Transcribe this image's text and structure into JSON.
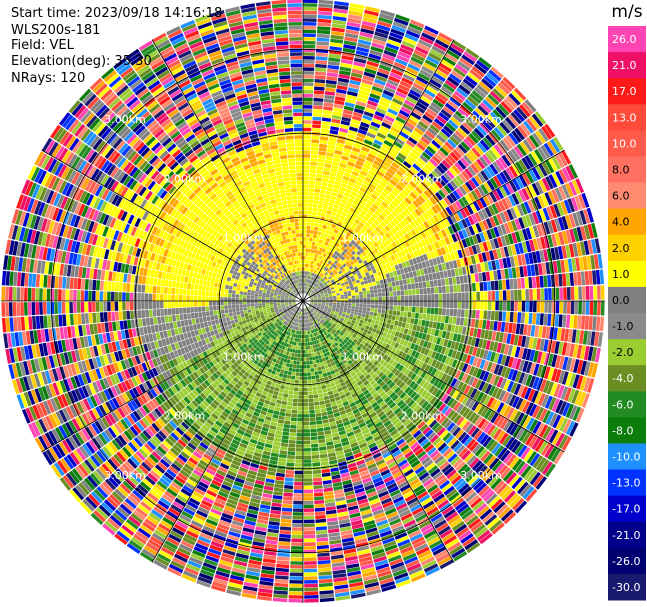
{
  "header": {
    "start_time": "Start time: 2023/09/18 14:16:18",
    "instrument": "WLS200s-181",
    "field": "Field: VEL",
    "elevation": "Elevation(deg): 35.30",
    "nrays": "NRays: 120"
  },
  "colorbar": {
    "unit": "m/s",
    "levels": [
      {
        "label": "26.0",
        "color": "#ff44b4"
      },
      {
        "label": "21.0",
        "color": "#ee1166"
      },
      {
        "label": "17.0",
        "color": "#ff1a1a"
      },
      {
        "label": "13.0",
        "color": "#ff4a3a"
      },
      {
        "label": "10.0",
        "color": "#ff5a4a"
      },
      {
        "label": "8.0",
        "color": "#ff7060"
      },
      {
        "label": "6.0",
        "color": "#ff8a70"
      },
      {
        "label": "4.0",
        "color": "#ffa500"
      },
      {
        "label": "2.0",
        "color": "#ffd000"
      },
      {
        "label": "1.0",
        "color": "#ffff00"
      },
      {
        "label": "0.0",
        "color": "#808080"
      },
      {
        "label": "-1.0",
        "color": "#8a8a8a"
      },
      {
        "label": "-2.0",
        "color": "#9acd32"
      },
      {
        "label": "-4.0",
        "color": "#6b8e23"
      },
      {
        "label": "-6.0",
        "color": "#228b22"
      },
      {
        "label": "-8.0",
        "color": "#0b7d0b"
      },
      {
        "label": "-10.0",
        "color": "#1e90ff"
      },
      {
        "label": "-13.0",
        "color": "#0033ff"
      },
      {
        "label": "-17.0",
        "color": "#0000cd"
      },
      {
        "label": "-21.0",
        "color": "#00008b"
      },
      {
        "label": "-26.0",
        "color": "#000070"
      },
      {
        "label": "-30.0",
        "color": "#191970"
      }
    ]
  },
  "chart_data": {
    "type": "heatmap",
    "projection": "polar-ppi",
    "field": "VEL",
    "unit": "m/s",
    "nrays": 120,
    "range_rings_km": [
      1.0,
      2.0,
      3.0
    ],
    "range_ring_labels": [
      "1.00km",
      "2.00km",
      "3.00km"
    ],
    "max_range_km": 3.6,
    "regions": [
      {
        "description": "north sector",
        "range_km": [
          1.0,
          2.0
        ],
        "velocity_ms": [
          1.0,
          2.0
        ],
        "color": "#ffff00"
      },
      {
        "description": "north-near",
        "range_km": [
          0.4,
          1.0
        ],
        "velocity_ms": [
          2.0,
          4.0
        ],
        "color": "#ffa500"
      },
      {
        "description": "center",
        "range_km": [
          0.0,
          0.4
        ],
        "velocity_ms": [
          -1.0,
          0.0
        ],
        "color": "#808080"
      },
      {
        "description": "south sector",
        "range_km": [
          0.4,
          1.4
        ],
        "velocity_ms": [
          -4.0,
          -2.0
        ],
        "color": "#9acd32"
      },
      {
        "description": "south-near",
        "range_km": [
          0.3,
          0.9
        ],
        "velocity_ms": [
          -8.0,
          -6.0
        ],
        "color": "#228b22"
      },
      {
        "description": "outer noise",
        "range_km": [
          2.2,
          3.6
        ],
        "velocity_ms": [
          -30.0,
          26.0
        ],
        "color": "mixed"
      }
    ]
  }
}
